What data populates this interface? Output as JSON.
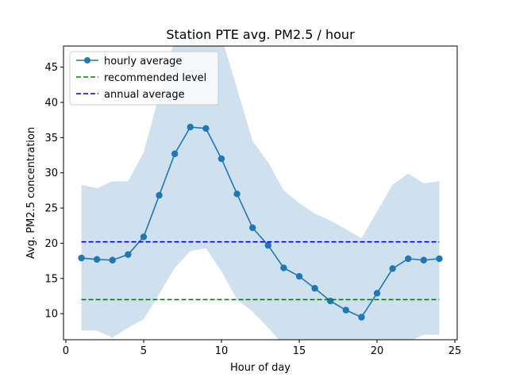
{
  "chart_data": {
    "type": "line",
    "title": "Station PTE avg. PM2.5 / hour",
    "xlabel": "Hour of day",
    "ylabel": "Avg. PM2.5 concentration",
    "xlim": [
      -0.15,
      25.15
    ],
    "ylim": [
      6.3,
      48
    ],
    "xticks": [
      0,
      5,
      10,
      15,
      20,
      25
    ],
    "yticks": [
      10,
      15,
      20,
      25,
      30,
      35,
      40,
      45
    ],
    "grid": false,
    "legend_position": "top-left",
    "x": [
      1,
      2,
      3,
      4,
      5,
      6,
      7,
      8,
      9,
      10,
      11,
      12,
      13,
      14,
      15,
      16,
      17,
      18,
      19,
      20,
      21,
      22,
      23,
      24
    ],
    "series": [
      {
        "name": "hourly average",
        "style": "line-markers",
        "color": "#1f77b4",
        "values": [
          17.9,
          17.7,
          17.6,
          18.4,
          20.9,
          26.8,
          32.7,
          36.5,
          36.3,
          32.0,
          27.0,
          22.2,
          19.7,
          16.5,
          15.3,
          13.6,
          11.8,
          10.5,
          9.5,
          12.9,
          16.4,
          17.8,
          17.6,
          17.8
        ]
      },
      {
        "name": "recommended level",
        "style": "dashed",
        "color": "#008000",
        "values": [
          12,
          12,
          12,
          12,
          12,
          12,
          12,
          12,
          12,
          12,
          12,
          12,
          12,
          12,
          12,
          12,
          12,
          12,
          12,
          12,
          12,
          12,
          12,
          12
        ]
      },
      {
        "name": "annual average",
        "style": "dashed",
        "color": "#0000cc",
        "values": [
          20.2,
          20.2,
          20.2,
          20.2,
          20.2,
          20.2,
          20.2,
          20.2,
          20.2,
          20.2,
          20.2,
          20.2,
          20.2,
          20.2,
          20.2,
          20.2,
          20.2,
          20.2,
          20.2,
          20.2,
          20.2,
          20.2,
          20.2,
          20.2
        ]
      }
    ],
    "band": {
      "color": "#cfe0ee",
      "upper": [
        28.3,
        27.8,
        28.8,
        28.8,
        32.9,
        41.0,
        49.0,
        51.0,
        51.0,
        49.3,
        42.0,
        34.5,
        31.5,
        27.5,
        25.7,
        24.2,
        23.2,
        22.0,
        20.7,
        24.5,
        28.3,
        29.9,
        28.5,
        28.8
      ],
      "lower": [
        7.6,
        7.6,
        6.6,
        8.0,
        9.2,
        12.8,
        16.5,
        18.9,
        19.3,
        16.0,
        12.0,
        10.3,
        8.0,
        5.5,
        5.0,
        4.5,
        4.0,
        4.0,
        5.0,
        5.0,
        5.0,
        6.0,
        7.0,
        7.0
      ]
    }
  }
}
